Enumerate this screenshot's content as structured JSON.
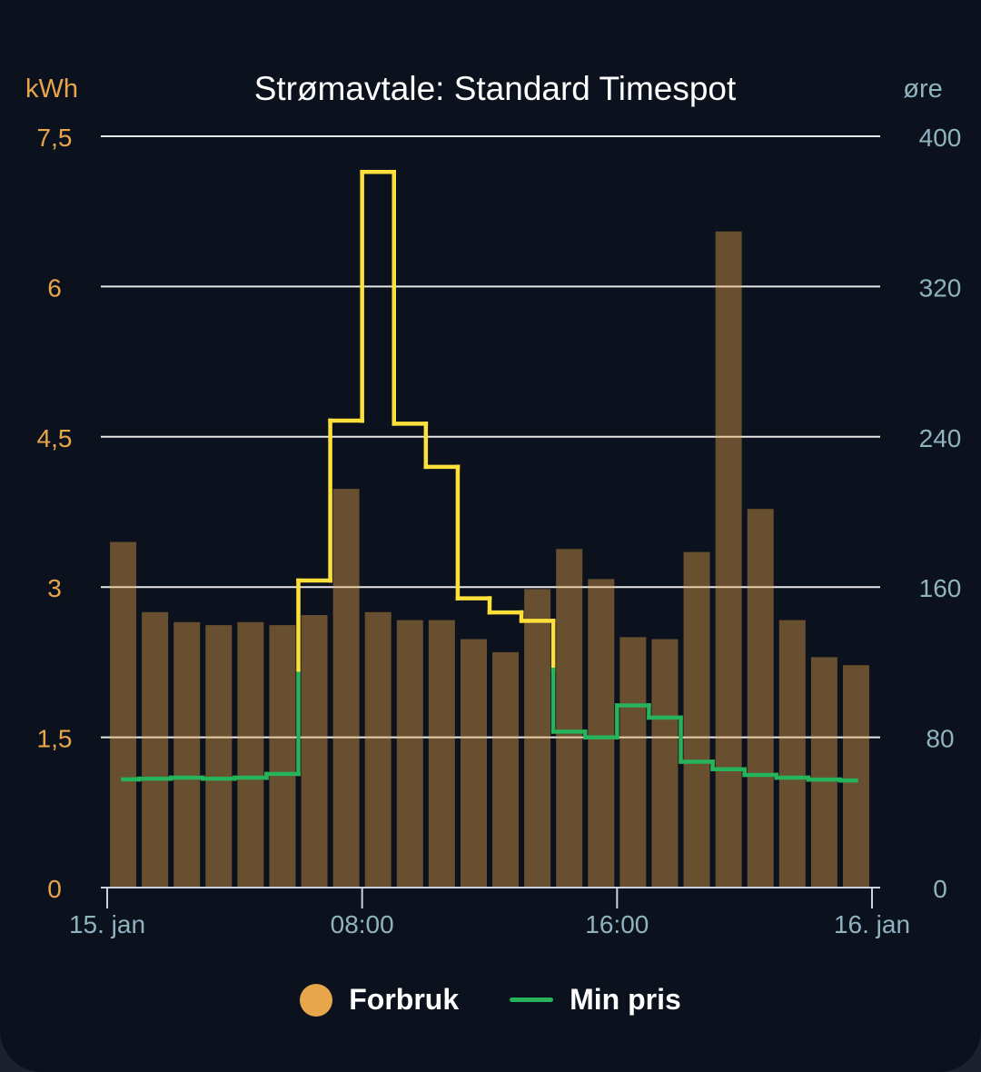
{
  "chart_data": {
    "type": "bar+line",
    "title": "Strømavtale: Standard Timespot",
    "left_axis": {
      "unit": "kWh",
      "range": [
        0,
        7.5
      ],
      "ticks": [
        "0",
        "1,5",
        "3",
        "4,5",
        "6",
        "7,5"
      ],
      "color": "#e8a64c"
    },
    "right_axis": {
      "unit": "øre",
      "range": [
        0,
        400
      ],
      "ticks": [
        "0",
        "80",
        "160",
        "240",
        "320",
        "400"
      ],
      "color": "#8fb3bf"
    },
    "x_axis": {
      "ticks": [
        "15. jan",
        "08:00",
        "16:00",
        "16. jan"
      ],
      "range_hours": [
        0,
        24
      ]
    },
    "grid": true,
    "legend_position": "bottom",
    "series": [
      {
        "name": "Forbruk",
        "type": "bar",
        "axis": "left",
        "color": "#e8a64c",
        "values": [
          3.45,
          2.75,
          2.65,
          2.62,
          2.65,
          2.62,
          2.72,
          3.98,
          2.75,
          2.67,
          2.67,
          2.48,
          2.35,
          2.98,
          3.38,
          3.08,
          2.5,
          2.48,
          3.35,
          6.55,
          3.78,
          2.67,
          2.3,
          2.22
        ]
      },
      {
        "name": "Min pris",
        "type": "step-line",
        "axis": "right",
        "color": "#27b35a",
        "high_color": "#fde03a",
        "high_threshold": 116,
        "values": [
          57.6,
          58,
          58.5,
          58,
          58.5,
          60.5,
          163.5,
          248.6,
          381,
          247,
          224,
          154,
          146.5,
          142,
          83,
          80,
          97,
          90.5,
          67,
          63,
          60,
          58.5,
          57.5,
          57
        ]
      }
    ]
  }
}
